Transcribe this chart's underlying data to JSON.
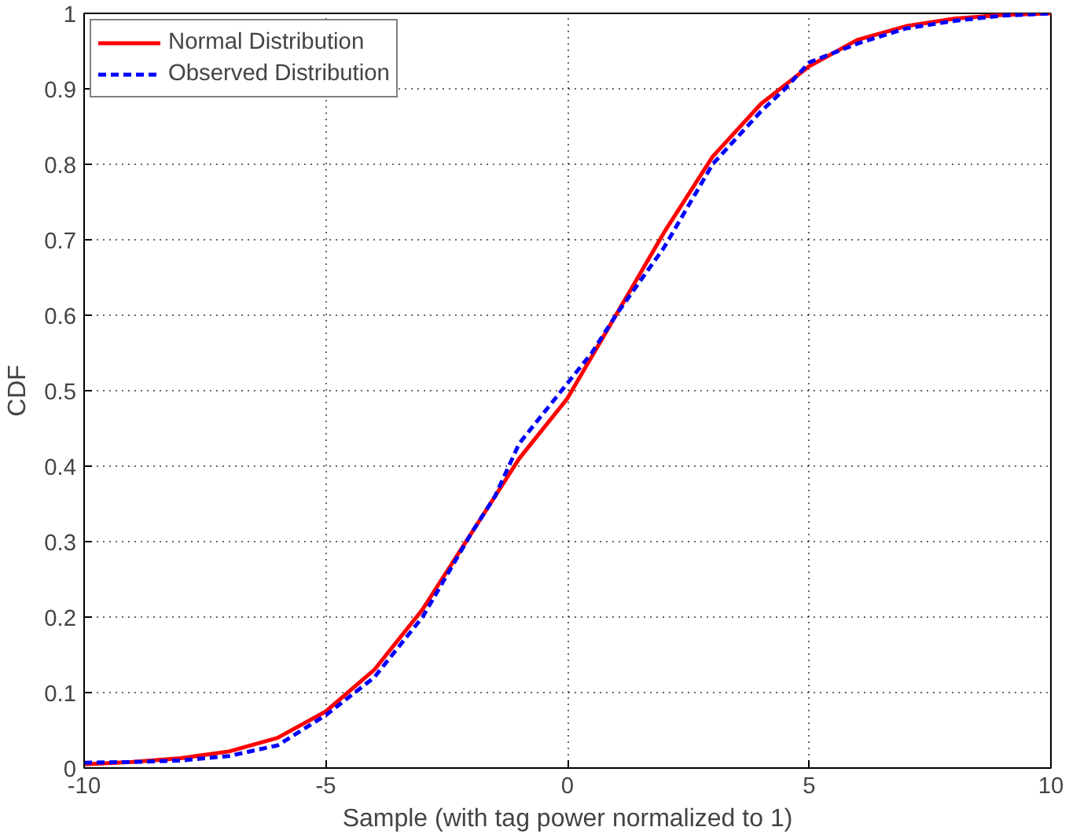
{
  "chart_data": {
    "type": "line",
    "xlabel": "Sample (with tag power normalized to 1)",
    "ylabel": "CDF",
    "xlim": [
      -10,
      10
    ],
    "xticks": [
      -10,
      -5,
      0,
      5,
      10
    ],
    "ylim": [
      0,
      1
    ],
    "yticks": [
      0,
      0.1,
      0.2,
      0.3,
      0.4,
      0.5,
      0.6,
      0.7,
      0.8,
      0.9,
      1
    ],
    "grid": true,
    "legend": "top left",
    "marker": "none",
    "series": [
      {
        "name": "Normal Distribution",
        "color": "#ff0000",
        "line_style": "solid",
        "x": [
          -10,
          -9,
          -8,
          -7,
          -6,
          -5,
          -4,
          -3,
          -2,
          -1,
          0,
          1,
          2,
          3,
          4,
          5,
          6,
          7,
          8,
          9,
          10
        ],
        "values": [
          0.005,
          0.008,
          0.013,
          0.022,
          0.04,
          0.075,
          0.13,
          0.21,
          0.31,
          0.41,
          0.49,
          0.6,
          0.71,
          0.81,
          0.88,
          0.93,
          0.965,
          0.983,
          0.993,
          0.998,
          1.0
        ]
      },
      {
        "name": "Observed Distribution",
        "color": "#0000ff",
        "line_style": "dashed",
        "x": [
          -10,
          -9,
          -8,
          -7,
          -6,
          -5,
          -4,
          -3,
          -2,
          -1.5,
          -1,
          -0.5,
          0,
          0.5,
          1,
          2,
          3,
          4,
          4.5,
          5,
          6,
          7,
          8,
          9,
          10
        ],
        "values": [
          0.007,
          0.008,
          0.01,
          0.016,
          0.03,
          0.07,
          0.12,
          0.2,
          0.31,
          0.36,
          0.43,
          0.47,
          0.51,
          0.55,
          0.6,
          0.69,
          0.8,
          0.87,
          0.9,
          0.935,
          0.96,
          0.98,
          0.99,
          0.997,
          1.0
        ]
      }
    ]
  }
}
